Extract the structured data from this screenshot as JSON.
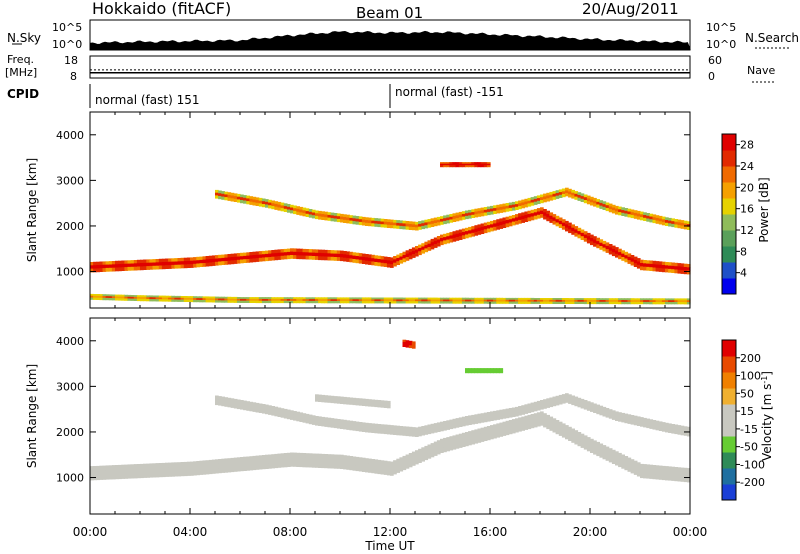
{
  "header": {
    "title": "Hokkaido (fitACF)",
    "beam": "Beam 01",
    "date": "20/Aug/2011"
  },
  "noise_panel": {
    "left_label": "N.Sky",
    "right_label": "N.Search",
    "ytick_top": "10^5",
    "ytick_bottom": "10^0"
  },
  "freq_panel": {
    "left_label_1": "Freq.",
    "left_label_2": "[MHz]",
    "left_ticks": [
      "18",
      "8"
    ],
    "right_label": "Nave",
    "right_ticks": [
      "60",
      "0"
    ]
  },
  "cpid_panel": {
    "label": "CPID",
    "segments": [
      "normal (fast) 151",
      "normal (fast) -151"
    ]
  },
  "colors": {
    "power_scale": [
      "#0000ee",
      "#1e50c8",
      "#2e8b57",
      "#5aa05a",
      "#8fbc5a",
      "#e6d200",
      "#f5a000",
      "#f06a00",
      "#e22a00",
      "#e00000"
    ],
    "velocity_scale": [
      "#1a3fd6",
      "#1f6fa0",
      "#2e8b57",
      "#66cc33",
      "#c8c8c0",
      "#c8c8c0",
      "#f0b030",
      "#f08000",
      "#e84a00",
      "#e00000"
    ],
    "ground_scatter": "#c8c8c0"
  },
  "chart_data": [
    {
      "type": "line",
      "name": "noise",
      "x_range": [
        "00:00",
        "24:00"
      ],
      "y_scale": "log",
      "series": [
        {
          "name": "N.Sky",
          "x": [
            0,
            2,
            4,
            6,
            8,
            10,
            12,
            14,
            16,
            18,
            20,
            22,
            24
          ],
          "y": [
            1.5,
            1.8,
            2,
            2.2,
            3.5,
            4.5,
            4.2,
            4.4,
            3.8,
            3.2,
            2.5,
            2,
            1.6
          ]
        },
        {
          "name": "N.Search",
          "x": [
            0,
            24
          ],
          "y": [
            null,
            null
          ]
        }
      ]
    },
    {
      "type": "line",
      "name": "frequency_nave",
      "ylim_left": [
        8,
        18
      ],
      "ylim_right": [
        0,
        60
      ],
      "series": [
        {
          "name": "Freq.",
          "x": [
            0,
            24
          ],
          "y": [
            10.4,
            10.4
          ]
        },
        {
          "name": "Nave",
          "x": [
            0,
            24
          ],
          "y": [
            22,
            22
          ]
        }
      ]
    },
    {
      "type": "table",
      "name": "cpid",
      "rows": [
        {
          "start": "00:00",
          "end": "12:00",
          "label": "normal (fast) 151"
        },
        {
          "start": "12:00",
          "end": "24:00",
          "label": "normal (fast) -151"
        }
      ]
    },
    {
      "type": "heatmap",
      "name": "power",
      "title": "Beam 01",
      "xlabel": "",
      "ylabel": "Slant Range [km]",
      "x_ticks": [
        "00:00",
        "04:00",
        "08:00",
        "12:00",
        "16:00",
        "20:00",
        "00:00"
      ],
      "y_ticks": [
        "1000",
        "2000",
        "3000",
        "4000"
      ],
      "ylim": [
        200,
        4500
      ],
      "colorbar_label": "Power [dB]",
      "colorbar_ticks": [
        "4",
        "8",
        "12",
        "16",
        "20",
        "24",
        "28"
      ],
      "zlim": [
        0,
        30
      ],
      "bands": [
        {
          "hours": [
            0,
            4,
            8,
            10,
            12,
            14,
            16,
            18,
            20,
            22,
            24
          ],
          "ranges": [
            1100,
            1200,
            1400,
            1350,
            1200,
            1700,
            2000,
            2300,
            1700,
            1150,
            1050
          ],
          "width": 220,
          "value": 26
        },
        {
          "hours": [
            5,
            7,
            9,
            11,
            13,
            15,
            17,
            19,
            21,
            23,
            24
          ],
          "ranges": [
            2700,
            2500,
            2250,
            2100,
            2000,
            2250,
            2450,
            2750,
            2350,
            2100,
            2000
          ],
          "width": 180,
          "value": 20
        },
        {
          "hours": [
            0,
            2,
            4,
            6,
            24
          ],
          "ranges": [
            450,
            420,
            400,
            380,
            350
          ],
          "width": 120,
          "value": 18
        },
        {
          "hours": [
            14,
            16
          ],
          "ranges": [
            3350,
            3350
          ],
          "width": 100,
          "value": 28
        }
      ]
    },
    {
      "type": "heatmap",
      "name": "velocity",
      "xlabel": "Time UT",
      "ylabel": "Slant Range [km]",
      "x_ticks": [
        "00:00",
        "04:00",
        "08:00",
        "12:00",
        "16:00",
        "20:00",
        "00:00"
      ],
      "y_ticks": [
        "1000",
        "2000",
        "3000",
        "4000"
      ],
      "ylim": [
        200,
        4500
      ],
      "colorbar_label": "Velocity [m s^-1]",
      "colorbar_ticks": [
        "200",
        "100",
        "50",
        "15",
        "-15",
        "-50",
        "-100",
        "-200"
      ],
      "zlim": [
        -250,
        250
      ],
      "bands": [
        {
          "hours": [
            0,
            4,
            8,
            10,
            12,
            14,
            16,
            18,
            20,
            22,
            24
          ],
          "ranges": [
            1100,
            1200,
            1400,
            1350,
            1200,
            1700,
            2000,
            2300,
            1700,
            1150,
            1050
          ],
          "width": 300,
          "value": 0
        },
        {
          "hours": [
            5,
            7,
            9,
            11,
            13,
            15,
            17,
            19,
            21,
            23,
            24
          ],
          "ranges": [
            2700,
            2500,
            2250,
            2100,
            2000,
            2250,
            2450,
            2750,
            2350,
            2100,
            2000
          ],
          "width": 200,
          "value": 0
        },
        {
          "hours": [
            9,
            12
          ],
          "ranges": [
            2750,
            2600
          ],
          "width": 150,
          "value": -40
        },
        {
          "hours": [
            15,
            16.5
          ],
          "ranges": [
            3350,
            3350
          ],
          "width": 100,
          "value": -60
        },
        {
          "hours": [
            12.5,
            13
          ],
          "ranges": [
            3950,
            3900
          ],
          "width": 150,
          "value": 200
        }
      ]
    }
  ],
  "axis": {
    "xlabel": "Time UT",
    "power_ylabel": "Slant Range [km]",
    "velocity_ylabel": "Slant Range [km]"
  }
}
